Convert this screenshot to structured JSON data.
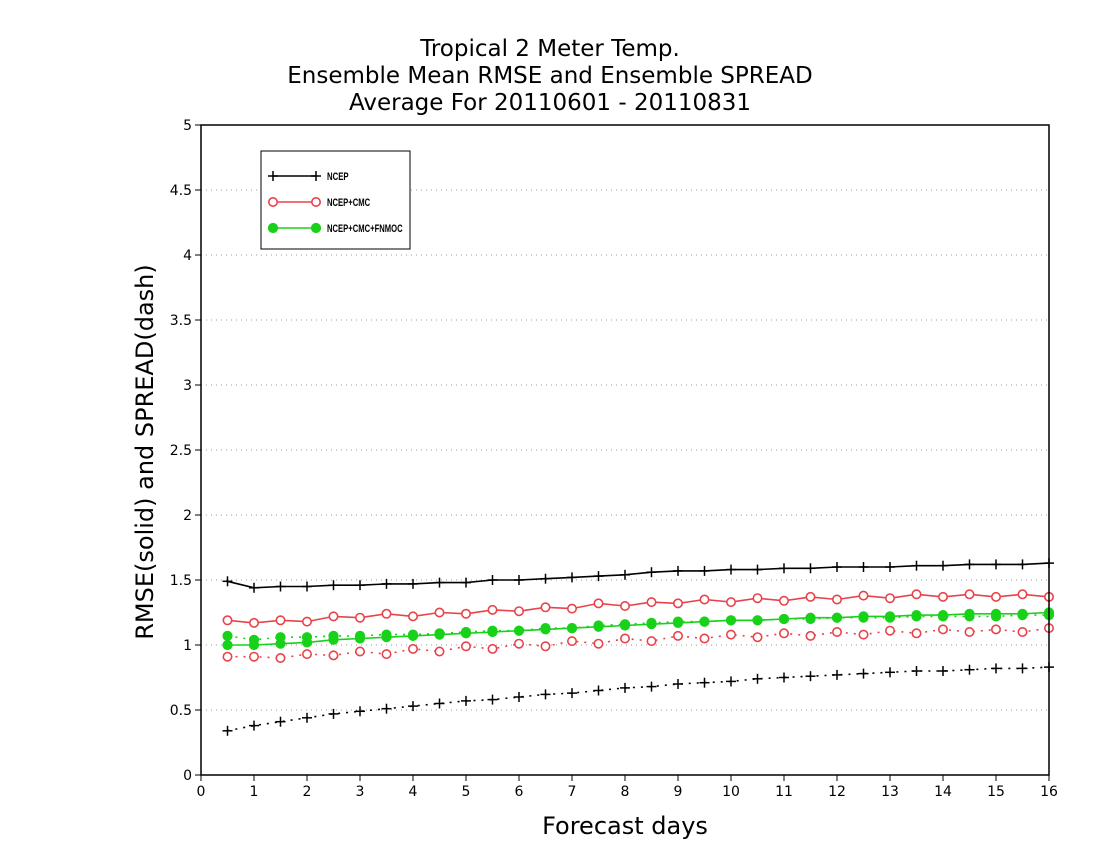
{
  "chart_data": {
    "type": "line",
    "title": [
      "Tropical 2 Meter Temp.",
      "Ensemble Mean RMSE and Ensemble SPREAD",
      "Average For 20110601 - 20110831"
    ],
    "xlabel": "Forecast days",
    "ylabel": "RMSE(solid) and SPREAD(dash)",
    "xlim": [
      0,
      16
    ],
    "ylim": [
      0,
      5
    ],
    "xticks": [
      "0",
      "1",
      "2",
      "3",
      "4",
      "5",
      "6",
      "7",
      "8",
      "9",
      "10",
      "11",
      "12",
      "13",
      "14",
      "15",
      "16"
    ],
    "yticks": [
      "0",
      "0.5",
      "1",
      "1.5",
      "2",
      "2.5",
      "3",
      "3.5",
      "4",
      "4.5",
      "5"
    ],
    "grid": true,
    "legend_position": "top-left",
    "x": [
      0.5,
      1,
      1.5,
      2,
      2.5,
      3,
      3.5,
      4,
      4.5,
      5,
      5.5,
      6,
      6.5,
      7,
      7.5,
      8,
      8.5,
      9,
      9.5,
      10,
      10.5,
      11,
      11.5,
      12,
      12.5,
      13,
      13.5,
      14,
      14.5,
      15,
      15.5,
      16
    ],
    "series": [
      {
        "name": "NCEP",
        "color": "#000000",
        "marker": "plus",
        "rmse": [
          1.49,
          1.44,
          1.45,
          1.45,
          1.46,
          1.46,
          1.47,
          1.47,
          1.48,
          1.48,
          1.5,
          1.5,
          1.51,
          1.52,
          1.53,
          1.54,
          1.56,
          1.57,
          1.57,
          1.58,
          1.58,
          1.59,
          1.59,
          1.6,
          1.6,
          1.6,
          1.61,
          1.61,
          1.62,
          1.62,
          1.62,
          1.63
        ],
        "spread": [
          0.34,
          0.38,
          0.41,
          0.44,
          0.47,
          0.49,
          0.51,
          0.53,
          0.55,
          0.57,
          0.58,
          0.6,
          0.62,
          0.63,
          0.65,
          0.67,
          0.68,
          0.7,
          0.71,
          0.72,
          0.74,
          0.75,
          0.76,
          0.77,
          0.78,
          0.79,
          0.8,
          0.8,
          0.81,
          0.82,
          0.82,
          0.83
        ]
      },
      {
        "name": "NCEP+CMC",
        "color": "#e8434a",
        "marker": "open-circle",
        "rmse": [
          1.19,
          1.17,
          1.19,
          1.18,
          1.22,
          1.21,
          1.24,
          1.22,
          1.25,
          1.24,
          1.27,
          1.26,
          1.29,
          1.28,
          1.32,
          1.3,
          1.33,
          1.32,
          1.35,
          1.33,
          1.36,
          1.34,
          1.37,
          1.35,
          1.38,
          1.36,
          1.39,
          1.37,
          1.39,
          1.37,
          1.39,
          1.37
        ],
        "spread": [
          0.91,
          0.91,
          0.9,
          0.93,
          0.92,
          0.95,
          0.93,
          0.97,
          0.95,
          0.99,
          0.97,
          1.01,
          0.99,
          1.03,
          1.01,
          1.05,
          1.03,
          1.07,
          1.05,
          1.08,
          1.06,
          1.09,
          1.07,
          1.1,
          1.08,
          1.11,
          1.09,
          1.12,
          1.1,
          1.12,
          1.1,
          1.13
        ]
      },
      {
        "name": "NCEP+CMC+FNMOC",
        "color": "#18d21a",
        "marker": "filled-circle",
        "rmse": [
          1.0,
          1.0,
          1.01,
          1.02,
          1.04,
          1.05,
          1.06,
          1.07,
          1.08,
          1.09,
          1.1,
          1.11,
          1.12,
          1.13,
          1.14,
          1.15,
          1.16,
          1.17,
          1.18,
          1.19,
          1.19,
          1.2,
          1.21,
          1.21,
          1.22,
          1.22,
          1.23,
          1.23,
          1.24,
          1.24,
          1.24,
          1.25
        ],
        "spread": [
          1.07,
          1.04,
          1.06,
          1.06,
          1.07,
          1.07,
          1.08,
          1.08,
          1.09,
          1.1,
          1.11,
          1.11,
          1.13,
          1.13,
          1.15,
          1.16,
          1.17,
          1.18,
          1.18,
          1.19,
          1.19,
          1.2,
          1.2,
          1.21,
          1.21,
          1.21,
          1.22,
          1.22,
          1.22,
          1.22,
          1.23,
          1.23
        ]
      }
    ]
  }
}
